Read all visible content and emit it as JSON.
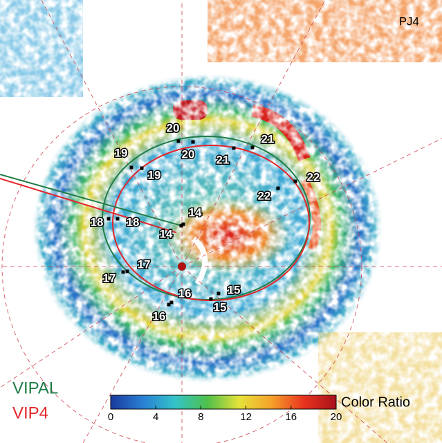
{
  "panel_label": "PJ4",
  "legend": [
    {
      "name": "VIPAL",
      "color": "#1e7d46"
    },
    {
      "name": "VIP4",
      "color": "#e3262b"
    }
  ],
  "colorbar": {
    "label": "Color Ratio",
    "range": [
      0,
      20
    ],
    "ticks": [
      0,
      4,
      8,
      12,
      16,
      20
    ],
    "colors": [
      "#1a3a9c",
      "#2a7fd4",
      "#33c3c9",
      "#4fbf4a",
      "#e6e23a",
      "#f5a02a",
      "#e8331e",
      "#a8101a"
    ]
  },
  "vipal_labels": [
    "14",
    "15",
    "16",
    "17",
    "18",
    "19",
    "20",
    "21",
    "22"
  ],
  "vip4_labels": [
    "14",
    "15",
    "16",
    "17",
    "18",
    "19",
    "20",
    "21",
    "22"
  ]
}
